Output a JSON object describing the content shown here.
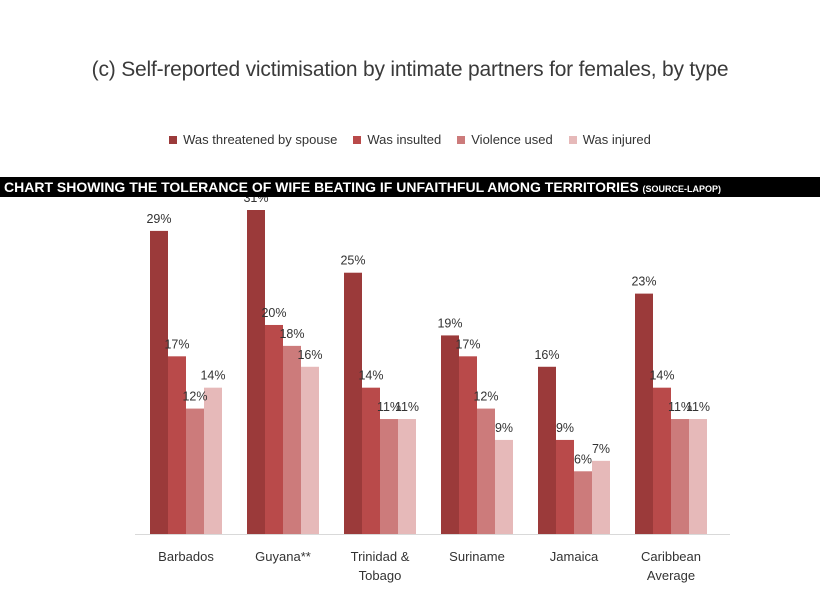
{
  "chart_data": {
    "type": "bar",
    "title": "(c) Self-reported victimisation by intimate partners for females, by type",
    "categories": [
      [
        "Barbados"
      ],
      [
        "Guyana**"
      ],
      [
        "Trinidad &",
        "Tobago"
      ],
      [
        "Suriname"
      ],
      [
        "Jamaica"
      ],
      [
        "Caribbean",
        "Average"
      ]
    ],
    "series": [
      {
        "name": "Was threatened by spouse",
        "color": "#9b3a3a",
        "values": [
          29,
          31,
          25,
          19,
          16,
          23
        ],
        "labels": [
          "29%",
          "31%",
          "25%",
          "19%",
          "16%",
          "23%"
        ]
      },
      {
        "name": "Was insulted",
        "color": "#b94a4a",
        "values": [
          17,
          20,
          14,
          17,
          9,
          14
        ],
        "labels": [
          "17%",
          "20%",
          "14%",
          "17%",
          "9%",
          "14%"
        ]
      },
      {
        "name": "Violence used",
        "color": "#cc7b7b",
        "values": [
          12,
          18,
          11,
          12,
          6,
          11
        ],
        "labels": [
          "12%",
          "18%",
          "11%",
          "12%",
          "6%",
          "11%"
        ]
      },
      {
        "name": "Was injured",
        "color": "#e6b9b9",
        "values": [
          14,
          16,
          11,
          9,
          7,
          11
        ],
        "labels": [
          "14%",
          "16%",
          "11%",
          "9%",
          "7%",
          "11%"
        ]
      }
    ],
    "ylim": [
      0,
      31
    ],
    "grid": false,
    "legend_position": "top"
  },
  "banner": {
    "text": "CHART SHOWING THE TOLERANCE OF WIFE BEATING IF UNFAITHFUL AMONG TERRITORIES ",
    "small": "(SOURCE-LAPOP)"
  }
}
